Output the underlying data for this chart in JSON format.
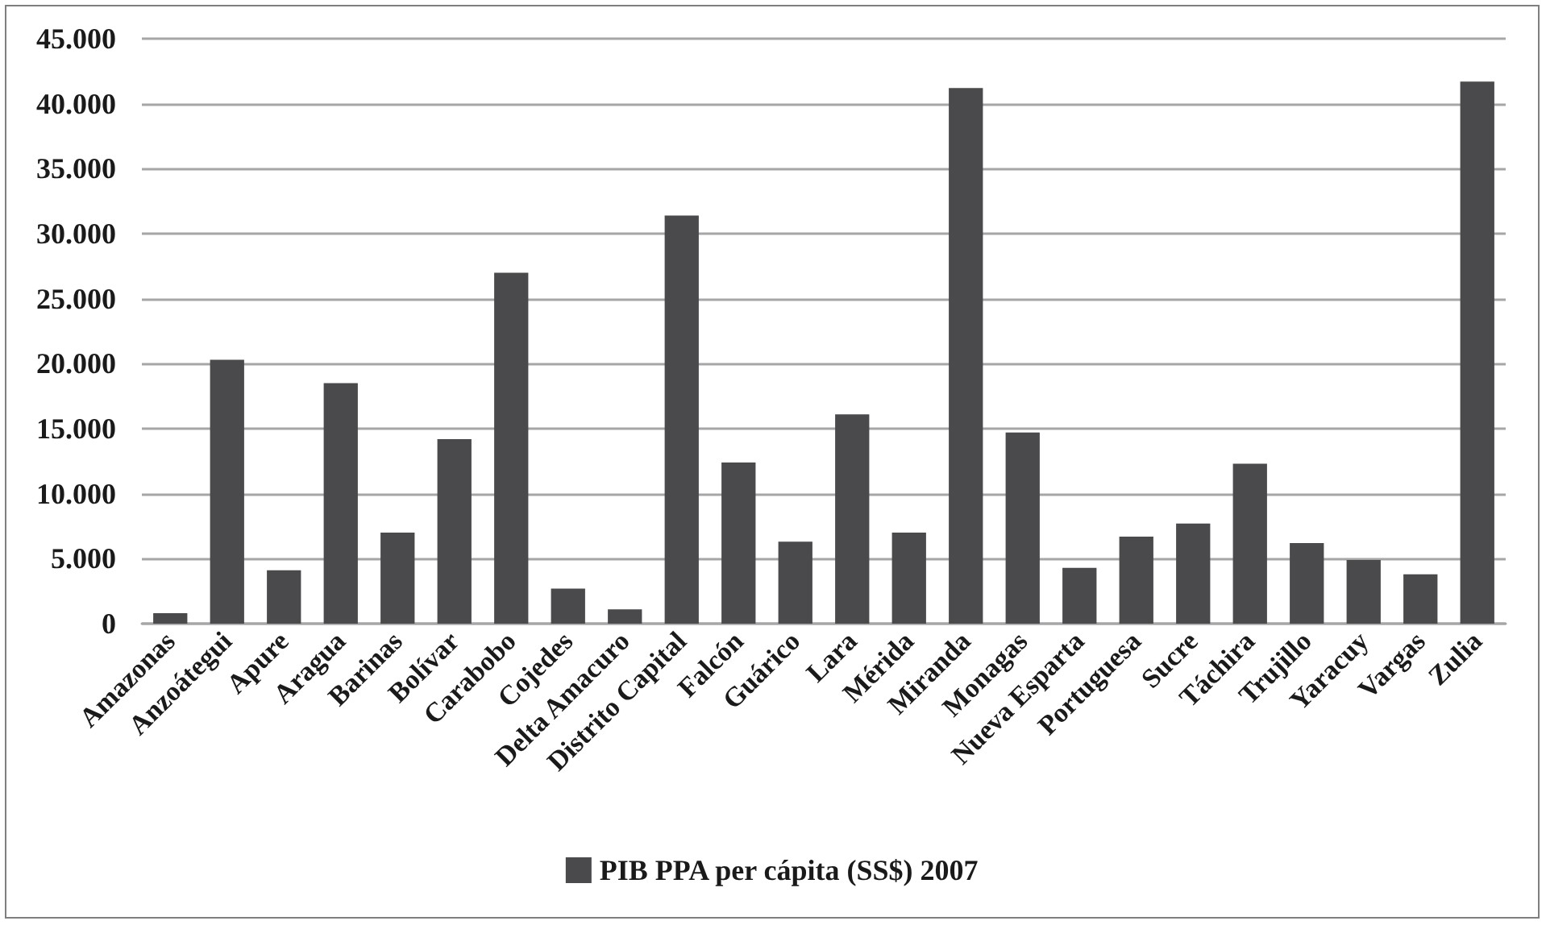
{
  "chart_data": {
    "type": "bar",
    "categories": [
      "Amazonas",
      "Anzoátegui",
      "Apure",
      "Aragua",
      "Barinas",
      "Bolívar",
      "Carabobo",
      "Cojedes",
      "Delta Amacuro",
      "Distrito Capital",
      "Falcón",
      "Guárico",
      "Lara",
      "Mérida",
      "Miranda",
      "Monagas",
      "Nueva Esparta",
      "Portuguesa",
      "Sucre",
      "Táchira",
      "Trujillo",
      "Yaracuy",
      "Vargas",
      "Zulia"
    ],
    "series": [
      {
        "name": "PIB PPA per cápita (SS$) 2007",
        "color": "#4a4a4c",
        "values": [
          800,
          20300,
          4100,
          18500,
          7000,
          14200,
          27000,
          2700,
          1100,
          31400,
          12400,
          6300,
          16100,
          7000,
          41200,
          14700,
          4300,
          6700,
          7700,
          12300,
          6200,
          4900,
          3800,
          41700
        ]
      }
    ],
    "ylim": [
      0,
      45000
    ],
    "yticks": [
      0,
      {
        "value": 5000,
        "label": "5.000"
      },
      {
        "value": 10000,
        "label": "10.000"
      },
      {
        "value": 15000,
        "label": "15.000"
      },
      {
        "value": 20000,
        "label": "20.000"
      },
      {
        "value": 25000,
        "label": "25.000"
      },
      {
        "value": 30000,
        "label": "30.000"
      },
      {
        "value": 35000,
        "label": "35.000"
      },
      {
        "value": 40000,
        "label": "40.000"
      },
      {
        "value": 45000,
        "label": "45.000"
      }
    ],
    "grid": "y",
    "legend": "bottom"
  }
}
